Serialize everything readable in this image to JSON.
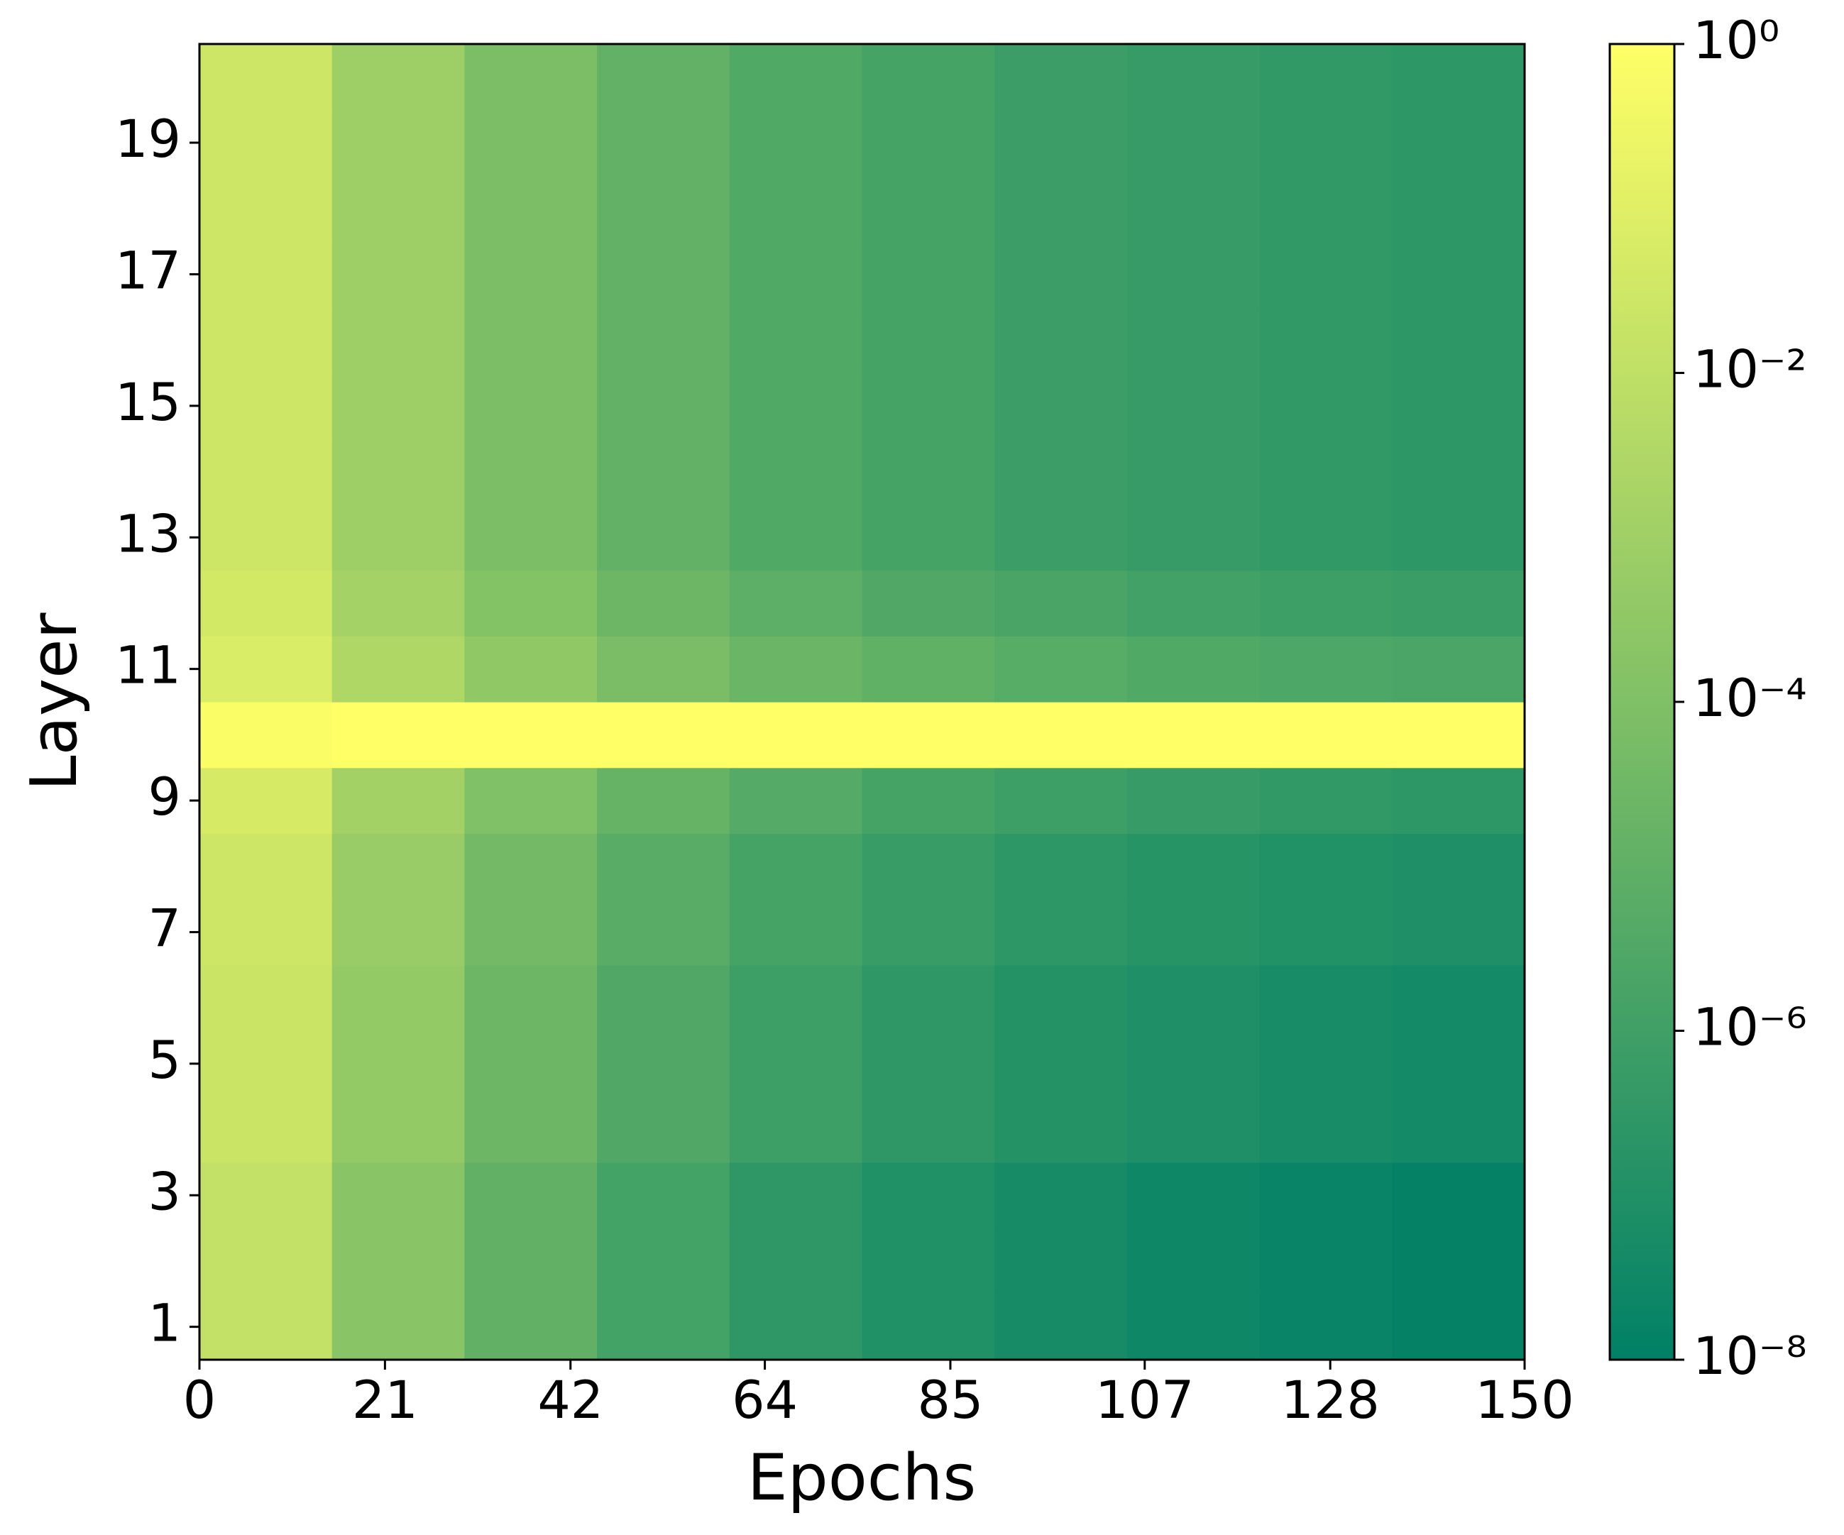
{
  "chart_data": {
    "type": "heatmap",
    "xlabel": "Epochs",
    "ylabel": "Layer",
    "xbins": [
      0,
      15,
      30,
      45,
      60,
      75,
      90,
      105,
      120,
      135,
      150
    ],
    "y": [
      1,
      2,
      3,
      4,
      5,
      6,
      7,
      8,
      9,
      10,
      11,
      12,
      13,
      14,
      15,
      16,
      17,
      18,
      19,
      20
    ],
    "values": [
      [
        0.012,
        0.0002,
        1.1e-05,
        1.3e-06,
        3e-07,
        1e-07,
        4.8e-08,
        2.8e-08,
        1.9e-08,
        1.4e-08
      ],
      [
        0.012,
        0.0002,
        1.1e-05,
        1.3e-06,
        3e-07,
        1e-07,
        4.8e-08,
        2.8e-08,
        1.9e-08,
        1.4e-08
      ],
      [
        0.012,
        0.0002,
        1.1e-05,
        1.3e-06,
        3e-07,
        1e-07,
        4.8e-08,
        2.8e-08,
        1.9e-08,
        1.4e-08
      ],
      [
        0.021,
        0.00043,
        2.6e-05,
        3.5e-06,
        8.3e-07,
        3e-07,
        1.4e-07,
        8.5e-08,
        5.8e-08,
        4.4e-08
      ],
      [
        0.021,
        0.00043,
        2.6e-05,
        3.5e-06,
        8.3e-07,
        3e-07,
        1.4e-07,
        8.5e-08,
        5.8e-08,
        4.4e-08
      ],
      [
        0.021,
        0.00043,
        2.6e-05,
        3.5e-06,
        8.3e-07,
        3e-07,
        1.4e-07,
        8.5e-08,
        5.8e-08,
        4.4e-08
      ],
      [
        0.028,
        0.00065,
        4.3e-05,
        6.2e-06,
        1.5e-06,
        5.6e-07,
        2.8e-07,
        1.7e-07,
        1.1e-07,
        8.7e-08
      ],
      [
        0.028,
        0.00065,
        4.3e-05,
        6.2e-06,
        1.5e-06,
        5.6e-07,
        2.8e-07,
        1.7e-07,
        1.1e-07,
        8.7e-08
      ],
      [
        0.05,
        0.0013,
        0.0001,
        1.6e-05,
        4.2e-06,
        1.6e-06,
        8.3e-07,
        5e-07,
        3.5e-07,
        2.8e-07
      ],
      [
        0.7,
        1,
        1,
        1,
        1,
        1,
        1,
        1,
        1,
        1
      ],
      [
        0.069,
        0.0032,
        0.00034,
        6.9e-05,
        2.2e-05,
        1e-05,
        5.5e-06,
        3.6e-06,
        2.7e-06,
        2.1e-06
      ],
      [
        0.039,
        0.0015,
        0.00014,
        2.7e-05,
        8.1e-06,
        3.5e-06,
        1.9e-06,
        1.2e-06,
        8.7e-07,
        6.8e-07
      ],
      [
        0.028,
        0.00089,
        7.6e-05,
        1.3e-05,
        3.6e-06,
        1.5e-06,
        7.8e-07,
        4.9e-07,
        3.5e-07,
        2.8e-07
      ],
      [
        0.028,
        0.00089,
        7.6e-05,
        1.3e-05,
        3.6e-06,
        1.5e-06,
        7.8e-07,
        4.9e-07,
        3.5e-07,
        2.8e-07
      ],
      [
        0.028,
        0.00089,
        7.6e-05,
        1.3e-05,
        3.6e-06,
        1.5e-06,
        7.8e-07,
        4.9e-07,
        3.5e-07,
        2.8e-07
      ],
      [
        0.028,
        0.00089,
        7.6e-05,
        1.3e-05,
        3.6e-06,
        1.5e-06,
        7.8e-07,
        4.9e-07,
        3.5e-07,
        2.8e-07
      ],
      [
        0.028,
        0.00089,
        7.6e-05,
        1.3e-05,
        3.6e-06,
        1.5e-06,
        7.8e-07,
        4.9e-07,
        3.5e-07,
        2.8e-07
      ],
      [
        0.028,
        0.00089,
        7.6e-05,
        1.3e-05,
        3.6e-06,
        1.5e-06,
        7.8e-07,
        4.9e-07,
        3.5e-07,
        2.8e-07
      ],
      [
        0.028,
        0.00089,
        7.6e-05,
        1.3e-05,
        3.6e-06,
        1.5e-06,
        7.8e-07,
        4.9e-07,
        3.5e-07,
        2.8e-07
      ],
      [
        0.028,
        0.00089,
        7.6e-05,
        1.3e-05,
        3.6e-06,
        1.5e-06,
        7.8e-07,
        4.9e-07,
        3.5e-07,
        2.8e-07
      ]
    ],
    "xlim": [
      0,
      150
    ],
    "xticks": [
      0,
      21,
      42,
      64,
      85,
      107,
      128,
      150
    ],
    "ylim": [
      0.5,
      20.5
    ],
    "yticks": [
      1,
      3,
      5,
      7,
      9,
      11,
      13,
      15,
      17,
      19
    ],
    "colors": [
      "#008066",
      "#ffff66"
    ],
    "colorscale": "log",
    "clim": [
      1e-08,
      1
    ],
    "cticks": [
      {
        "value": 1e-08,
        "label": "10⁻⁸"
      },
      {
        "value": 1e-06,
        "label": "10⁻⁶"
      },
      {
        "value": 0.0001,
        "label": "10⁻⁴"
      },
      {
        "value": 0.01,
        "label": "10⁻²"
      },
      {
        "value": 1,
        "label": "10⁰"
      }
    ]
  }
}
